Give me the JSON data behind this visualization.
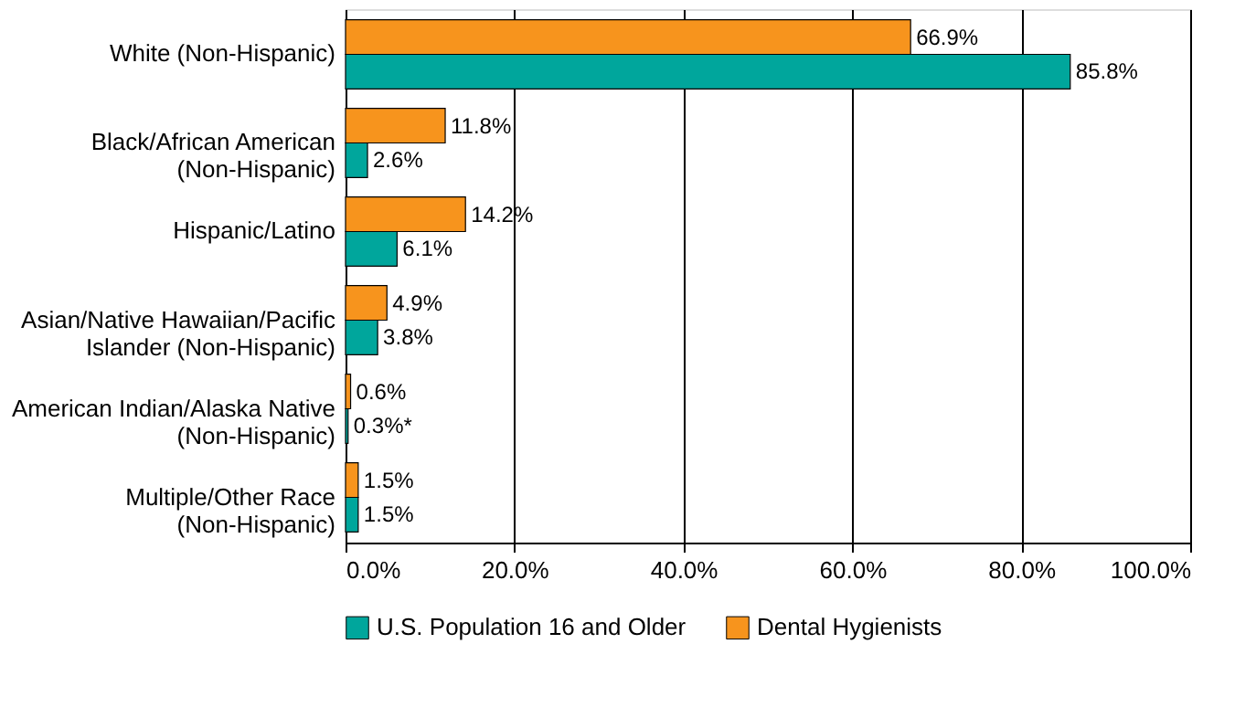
{
  "chart_data": {
    "type": "bar",
    "orientation": "horizontal",
    "categories": [
      "White (Non-Hispanic)",
      "Black/African American\n(Non-Hispanic)",
      "Hispanic/Latino",
      "Asian/Native Hawaiian/Pacific\nIslander (Non-Hispanic)",
      "American Indian/Alaska Native\n(Non-Hispanic)",
      "Multiple/Other Race\n(Non-Hispanic)"
    ],
    "series": [
      {
        "name": "U.S. Population 16 and Older",
        "color": "#00a69c",
        "values": [
          85.8,
          2.6,
          6.1,
          3.8,
          0.3,
          1.5
        ],
        "value_labels": [
          "85.8%",
          "2.6%",
          "6.1%",
          "3.8%",
          "0.3%*",
          "1.5%"
        ]
      },
      {
        "name": "Dental Hygienists",
        "color": "#f7941d",
        "values": [
          66.9,
          11.8,
          14.2,
          4.9,
          0.6,
          1.5
        ],
        "value_labels": [
          "66.9%",
          "11.8%",
          "14.2%",
          "4.9%",
          "0.6%",
          "1.5%"
        ]
      }
    ],
    "xlim": [
      0,
      100
    ],
    "xticks": [
      {
        "value": 0,
        "label": "0.0%"
      },
      {
        "value": 20,
        "label": "20.0%"
      },
      {
        "value": 40,
        "label": "40.0%"
      },
      {
        "value": 60,
        "label": "60.0%"
      },
      {
        "value": 80,
        "label": "80.0%"
      },
      {
        "value": 100,
        "label": "100.0%"
      }
    ],
    "grid": "x",
    "legend": "bottom"
  }
}
